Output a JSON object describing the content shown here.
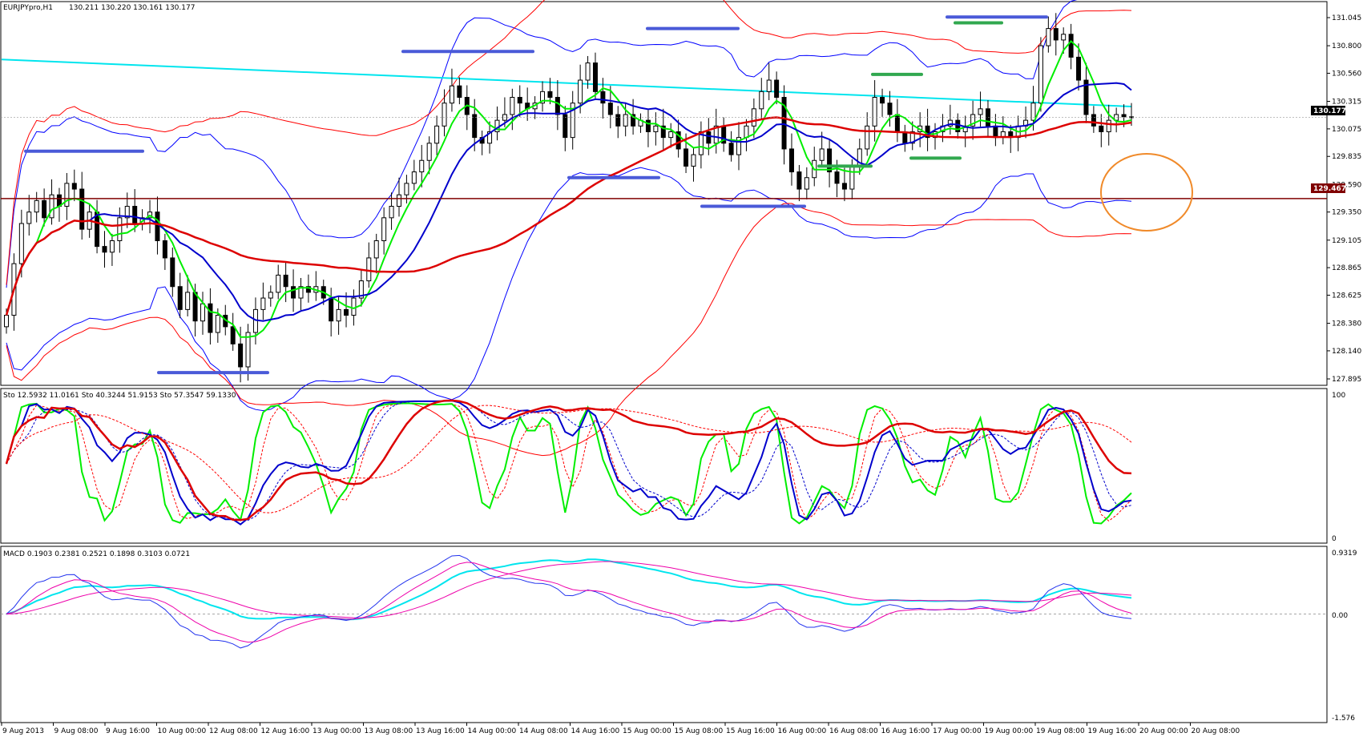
{
  "window": {
    "title": "EURJPYpro,H1",
    "ohlc": "130.211 130.220 130.161 130.177"
  },
  "panels": {
    "price": {
      "y_ticks": [
        "131.045",
        "130.800",
        "130.560",
        "130.315",
        "130.075",
        "129.835",
        "129.590",
        "129.350",
        "129.105",
        "128.865",
        "128.625",
        "128.380",
        "128.140",
        "127.895"
      ],
      "current_price": "130.177",
      "hline_price": "129.467",
      "colors": {
        "bb_outer": "#ff0000",
        "bb_inner": "#0000ff",
        "ma_fast": "#00ee00",
        "ma_mid": "#0000cc",
        "ma_slow": "#dd0000",
        "trend": "#00e5ee",
        "hline": "#800000",
        "ellipse": "#f08a2a",
        "level_blue": "#4a5ad8",
        "level_green": "#31a84f"
      }
    },
    "stochastic": {
      "header": "Sto 12.5932 11.0161   Sto 40.3244 51.9153   Sto 57.3547 59.1330",
      "y_top": "100",
      "y_bottom": "0"
    },
    "macd": {
      "header": "MACD 0.1903 0.2381 0.2521 0.1898 0.3103 0.0721",
      "y_ticks": [
        "0.9319",
        "0.00",
        "-1.576"
      ]
    }
  },
  "x_axis": {
    "labels": [
      "9 Aug 2013",
      "9 Aug 08:00",
      "9 Aug 16:00",
      "10 Aug 00:00",
      "12 Aug 08:00",
      "12 Aug 16:00",
      "13 Aug 00:00",
      "13 Aug 08:00",
      "13 Aug 16:00",
      "14 Aug 00:00",
      "14 Aug 08:00",
      "14 Aug 16:00",
      "15 Aug 00:00",
      "15 Aug 08:00",
      "15 Aug 16:00",
      "16 Aug 00:00",
      "16 Aug 08:00",
      "16 Aug 16:00",
      "17 Aug 00:00",
      "19 Aug 00:00",
      "19 Aug 08:00",
      "19 Aug 16:00",
      "20 Aug 00:00",
      "20 Aug 08:00"
    ]
  },
  "chart_data": {
    "type": "candlestick",
    "symbol": "EURJPYpro",
    "timeframe": "H1",
    "ylim": [
      127.895,
      131.045
    ],
    "closes": [
      128.45,
      128.9,
      129.25,
      129.35,
      129.45,
      129.3,
      129.5,
      129.4,
      129.6,
      129.55,
      129.2,
      129.35,
      129.05,
      129.0,
      129.1,
      129.3,
      129.4,
      129.25,
      129.3,
      129.35,
      129.1,
      128.95,
      128.7,
      128.5,
      128.65,
      128.4,
      128.55,
      128.3,
      128.45,
      128.35,
      128.2,
      128.0,
      128.3,
      128.5,
      128.6,
      128.65,
      128.8,
      128.7,
      128.6,
      128.7,
      128.65,
      128.7,
      128.6,
      128.4,
      128.5,
      128.45,
      128.6,
      128.75,
      128.95,
      129.1,
      129.3,
      129.4,
      129.5,
      129.6,
      129.7,
      129.8,
      129.95,
      130.1,
      130.3,
      130.45,
      130.35,
      130.2,
      130.0,
      129.95,
      130.05,
      130.15,
      130.2,
      130.35,
      130.3,
      130.25,
      130.3,
      130.4,
      130.35,
      130.2,
      130.0,
      130.3,
      130.5,
      130.65,
      130.4,
      130.3,
      130.2,
      130.1,
      130.2,
      130.1,
      130.15,
      130.05,
      130.1,
      130.0,
      130.05,
      129.9,
      129.75,
      129.85,
      130.05,
      129.95,
      130.1,
      129.95,
      129.85,
      130.0,
      130.1,
      130.25,
      130.4,
      130.5,
      130.35,
      129.9,
      129.7,
      129.55,
      129.65,
      129.8,
      129.9,
      129.7,
      129.6,
      129.55,
      129.75,
      129.9,
      130.1,
      130.35,
      130.3,
      130.2,
      130.05,
      129.95,
      130.05,
      130.1,
      130.0,
      130.05,
      130.1,
      130.15,
      130.05,
      130.1,
      130.2,
      130.25,
      130.1,
      130.0,
      130.05,
      130.0,
      130.1,
      130.15,
      130.3,
      130.8,
      130.95,
      130.85,
      130.9,
      130.7,
      130.5,
      130.2,
      130.1,
      130.05,
      130.15,
      130.2,
      130.18,
      130.177
    ],
    "levels": [
      {
        "color": "blue",
        "price": 129.88,
        "from": 32,
        "to": 178
      },
      {
        "color": "blue",
        "price": 127.95,
        "from": 198,
        "to": 334
      },
      {
        "color": "blue",
        "price": 130.75,
        "from": 503,
        "to": 665
      },
      {
        "color": "blue",
        "price": 129.65,
        "from": 710,
        "to": 822
      },
      {
        "color": "blue",
        "price": 130.95,
        "from": 808,
        "to": 921
      },
      {
        "color": "blue",
        "price": 129.4,
        "from": 876,
        "to": 1004
      },
      {
        "color": "green",
        "price": 130.55,
        "from": 1089,
        "to": 1150
      },
      {
        "color": "green",
        "price": 129.75,
        "from": 1022,
        "to": 1087
      },
      {
        "color": "green",
        "price": 129.82,
        "from": 1137,
        "to": 1198
      },
      {
        "color": "green",
        "price": 131.0,
        "from": 1192,
        "to": 1250
      },
      {
        "color": "blue",
        "price": 131.05,
        "from": 1182,
        "to": 1306
      }
    ],
    "stochastic": {
      "lines": [
        "fast",
        "slow",
        "long"
      ],
      "range": [
        0,
        100
      ]
    },
    "macd": {
      "range": [
        -1.576,
        0.9319
      ]
    }
  }
}
